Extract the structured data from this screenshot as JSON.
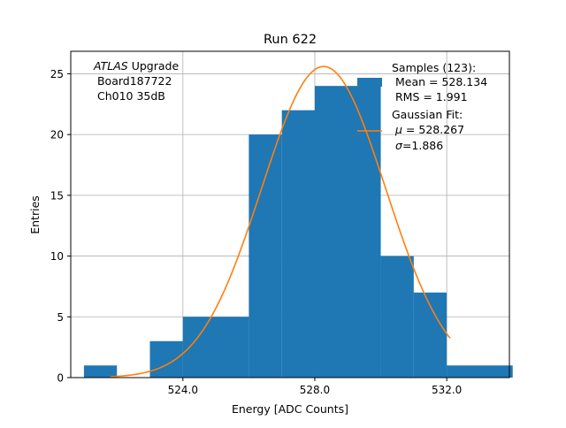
{
  "colors": {
    "bars": "#1f77b4",
    "fit": "#ff7f0e",
    "grid": "#b0b0b0",
    "axes": "#000000"
  },
  "chart_data": {
    "type": "bar",
    "title": "Run 622",
    "xlabel": "Energy [ADC Counts]",
    "ylabel": "Entries",
    "xlim": [
      520.6,
      533.9
    ],
    "ylim": [
      0,
      26.85
    ],
    "xticks": [
      524.0,
      528.0,
      532.0
    ],
    "xtick_labels": [
      "524.0",
      "528.0",
      "532.0"
    ],
    "yticks": [
      0,
      5,
      10,
      15,
      20,
      25
    ],
    "ytick_labels": [
      "0",
      "5",
      "10",
      "15",
      "20",
      "25"
    ],
    "grid": true,
    "bin_edges": [
      521.0,
      522.0,
      523.0,
      524.0,
      525.0,
      526.0,
      527.0,
      528.0,
      529.0,
      530.0,
      531.0,
      532.0,
      533.0,
      534.0
    ],
    "hist_bins": [
      {
        "x0": 521.0,
        "x1": 522.0,
        "count": 1
      },
      {
        "x0": 523.0,
        "x1": 524.0,
        "count": 3
      },
      {
        "x0": 524.0,
        "x1": 526.0,
        "count": 5
      },
      {
        "x0": 526.0,
        "x1": 527.0,
        "count": 20
      },
      {
        "x0": 527.0,
        "x1": 528.0,
        "count": 22
      },
      {
        "x0": 528.0,
        "x1": 530.0,
        "count": 24
      },
      {
        "x0": 530.0,
        "x1": 531.0,
        "count": 10
      },
      {
        "x0": 531.0,
        "x1": 532.0,
        "count": 7
      },
      {
        "x0": 532.0,
        "x1": 534.0,
        "count": 1
      }
    ],
    "fit": {
      "mu": 528.267,
      "sigma": 1.886,
      "x_range": [
        521.8,
        532.1
      ],
      "amplitude": 25.6
    },
    "annotation": {
      "line1_italic": "ATLAS",
      "line1_rest": " Upgrade",
      "line2": " Board187722",
      "line3": " Ch010 35dB"
    },
    "legend": {
      "placement": "top-right",
      "samples": {
        "line1": "Samples (123):",
        "line2": " Mean = 528.134",
        "line3": " RMS = 1.991"
      },
      "fit": {
        "line1": "Gaussian Fit:",
        "line2_symbol": "μ",
        "line2_rest": " = 528.267",
        "line3_symbol": "σ",
        "line3_rest": "=1.886"
      }
    }
  }
}
